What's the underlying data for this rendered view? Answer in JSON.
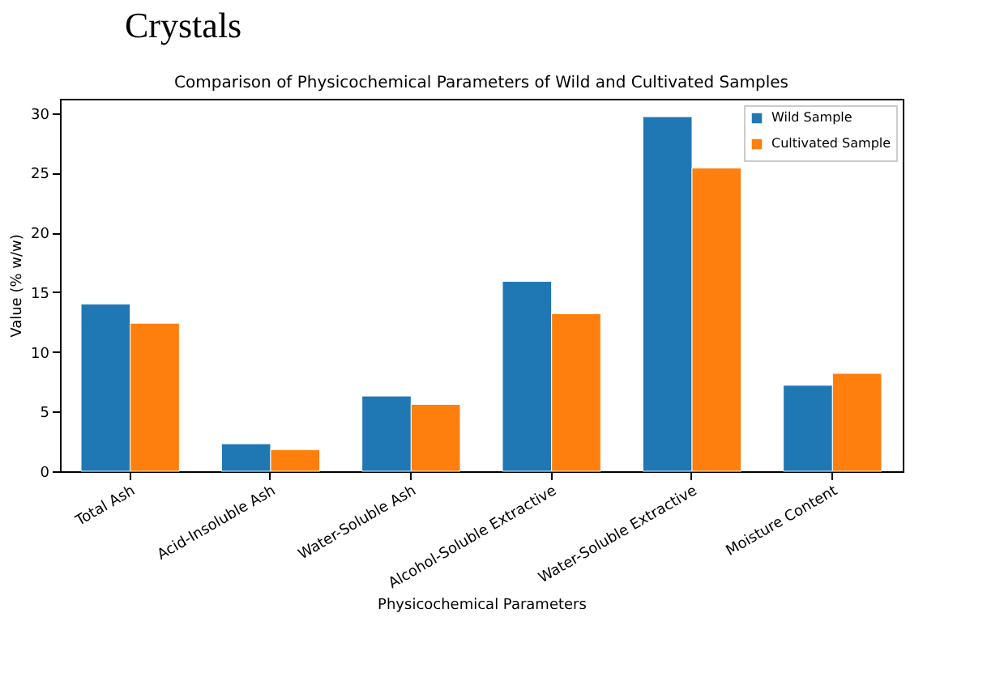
{
  "chart_data": {
    "type": "bar",
    "title": "Comparison of Physicochemical Parameters of Wild and Cultivated Samples",
    "xlabel": "Physicochemical Parameters",
    "ylabel": "Value (% w/w)",
    "categories": [
      "Total Ash",
      "Acid-Insoluble Ash",
      "Water-Soluble Ash",
      "Alcohol-Soluble Extractive",
      "Water-Soluble Extractive",
      "Moisture Content"
    ],
    "series": [
      {
        "name": "Wild Sample",
        "color": "#1f77b4",
        "values": [
          14.0,
          2.3,
          6.3,
          15.9,
          29.7,
          7.2
        ]
      },
      {
        "name": "Cultivated Sample",
        "color": "#ff7f0e",
        "values": [
          12.4,
          1.8,
          5.6,
          13.2,
          25.4,
          8.2
        ]
      }
    ],
    "ylim": [
      0,
      31.2
    ],
    "yticks": [
      0,
      5,
      10,
      15,
      20,
      25,
      30
    ],
    "grid": false,
    "legend": "top right",
    "annotations": [
      "Crystals"
    ]
  }
}
